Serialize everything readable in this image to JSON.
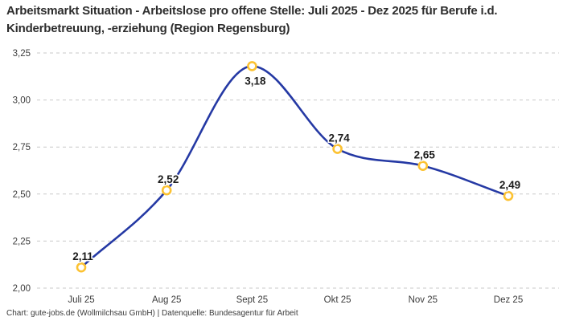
{
  "footer": "Chart: gute-jobs.de (Wollmilchsau GmbH) | Datenquelle: Bundesagentur für Arbeit",
  "chart_data": {
    "type": "line",
    "title": "Arbeitsmarkt Situation - Arbeitslose pro offene Stelle: Juli 2025 - Dez 2025 für Berufe i.d. Kinderbetreuung, -erziehung (Region Regensburg)",
    "categories": [
      "Juli 25",
      "Aug 25",
      "Sept 25",
      "Okt 25",
      "Nov 25",
      "Dez 25"
    ],
    "values": [
      2.11,
      2.52,
      3.18,
      2.74,
      2.65,
      2.49
    ],
    "data_labels": [
      "2,11",
      "2,52",
      "3,18",
      "2,74",
      "2,65",
      "2,49"
    ],
    "ylim": [
      2.0,
      3.25
    ],
    "ytick_step": 0.25,
    "ytick_labels": [
      "2,00",
      "2,25",
      "2,50",
      "2,75",
      "3,00",
      "3,25"
    ],
    "xlabel": "",
    "ylabel": "",
    "grid": "horizontal-dashed",
    "legend": "none",
    "curve": "smooth-monotone",
    "line_color": "#2539a4",
    "marker_color": "#fcc232",
    "marker_fill": "#ffffff",
    "grid_color": "#c9c9c9",
    "axis_text_color": "#3c3c3c",
    "label_color": "#1b1b1b"
  }
}
